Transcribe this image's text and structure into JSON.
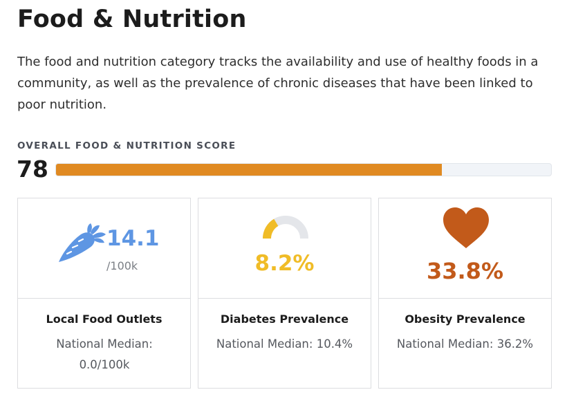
{
  "header": {
    "title": "Food & Nutrition",
    "description": "The food and nutrition category tracks the availability and use of healthy foods in a community, as well as the prevalence of chronic diseases that have been linked to poor nutrition."
  },
  "score": {
    "label": "OVERALL FOOD & NUTRITION SCORE",
    "value": "78",
    "percent": 78,
    "fill_color": "#e08a22"
  },
  "cards": [
    {
      "icon": "carrot-icon",
      "value": "14.1",
      "unit": "/100k",
      "name": "Local Food Outlets",
      "median": "National Median: 0.0/100k",
      "accent_color": "#5e96e3"
    },
    {
      "icon": "gauge-icon",
      "value": "8.2%",
      "gauge_fraction": 0.33,
      "name": "Diabetes Prevalence",
      "median": "National Median: 10.4%",
      "accent_color": "#f0bc27"
    },
    {
      "icon": "heart-icon",
      "value": "33.8%",
      "name": "Obesity Prevalence",
      "median": "National Median: 36.2%",
      "accent_color": "#c25a1a"
    }
  ]
}
